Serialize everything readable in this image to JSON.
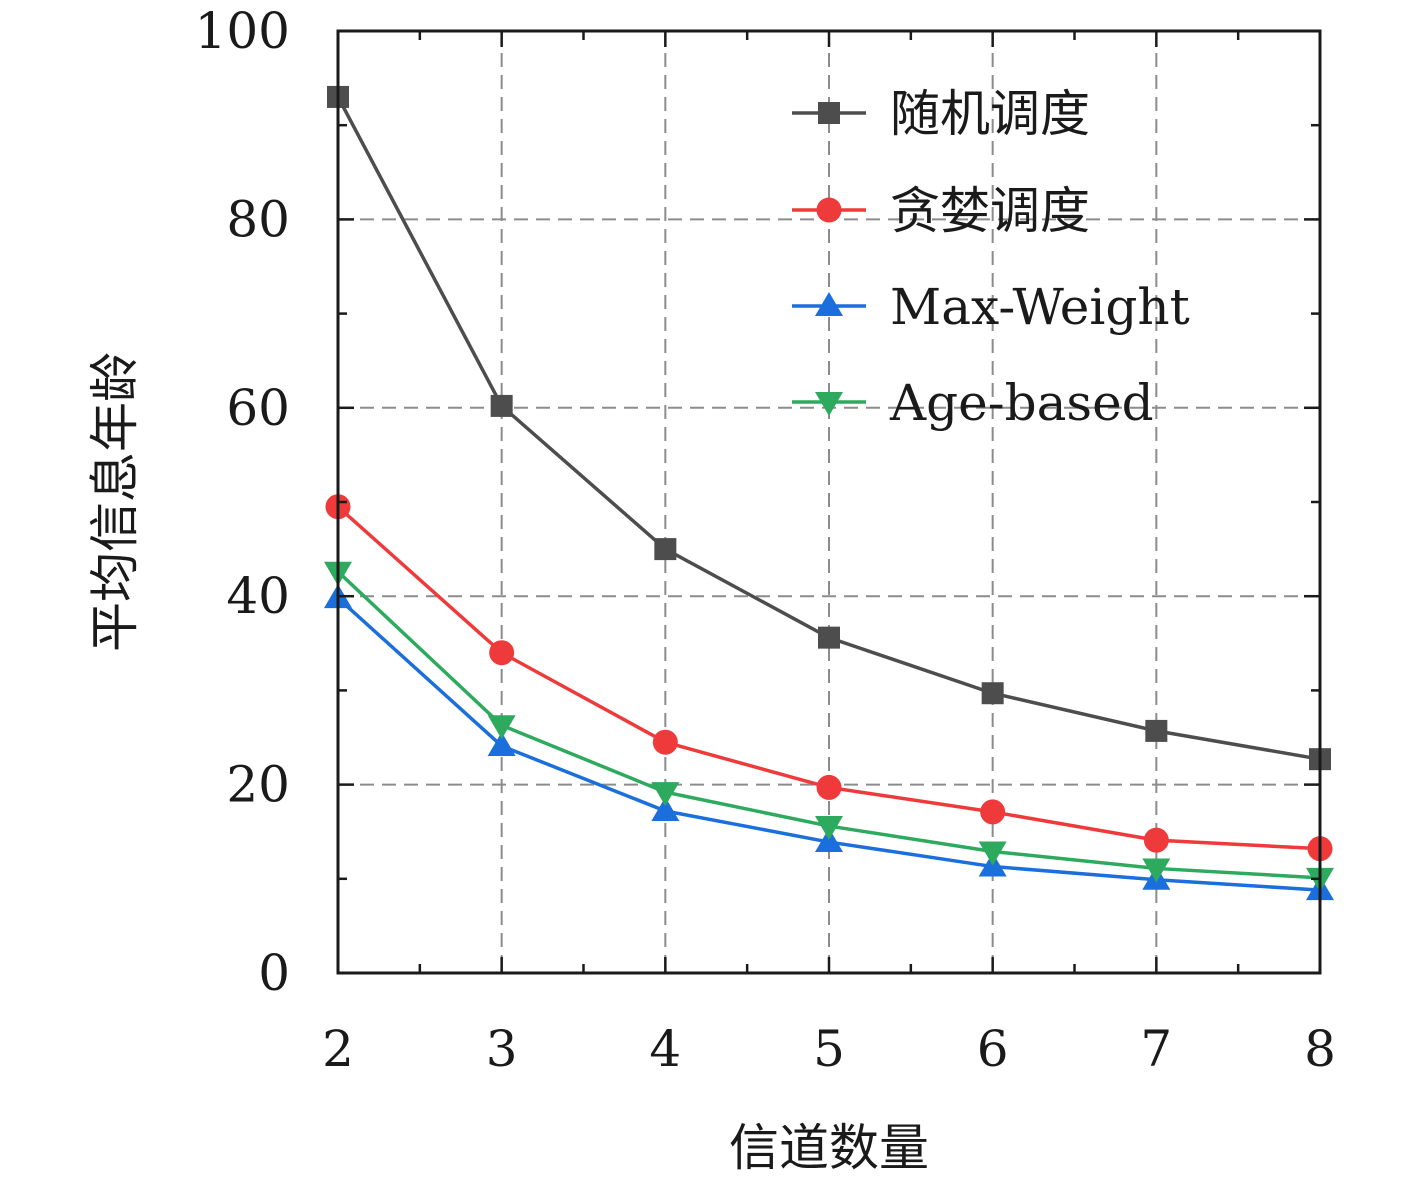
{
  "chart_data": {
    "type": "line",
    "title": "",
    "xlabel": "信道数量",
    "ylabel": "平均信息年龄",
    "x": [
      2,
      3,
      4,
      5,
      6,
      7,
      8
    ],
    "xlim": [
      2,
      8
    ],
    "ylim": [
      0,
      100
    ],
    "xticks": [
      2,
      3,
      4,
      5,
      6,
      7,
      8
    ],
    "yticks": [
      0,
      20,
      40,
      60,
      80,
      100
    ],
    "grid": "dashed, major ticks",
    "legend_position": "top-right",
    "series": [
      {
        "name": "随机调度",
        "color": "#4d4d4d",
        "marker": "square",
        "values": [
          93.0,
          60.2,
          45.0,
          35.6,
          29.7,
          25.7,
          22.7
        ]
      },
      {
        "name": "贪婪调度",
        "color": "#ee3a3a",
        "marker": "circle",
        "values": [
          49.5,
          34.0,
          24.5,
          19.7,
          17.1,
          14.1,
          13.2
        ]
      },
      {
        "name": "Max-Weight",
        "color": "#1b6fdc",
        "marker": "triangle-up",
        "values": [
          39.8,
          24.1,
          17.2,
          13.9,
          11.3,
          9.9,
          8.8
        ]
      },
      {
        "name": "Age-based",
        "color": "#2eaa5e",
        "marker": "triangle-down",
        "values": [
          42.6,
          26.3,
          19.2,
          15.6,
          12.9,
          11.1,
          10.1
        ]
      }
    ]
  }
}
